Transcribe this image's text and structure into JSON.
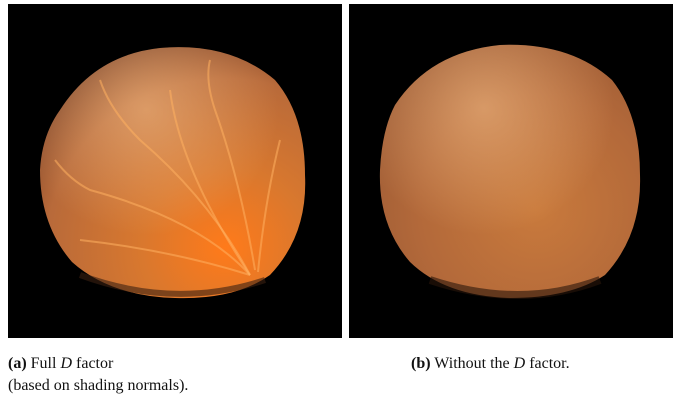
{
  "panels": [
    {
      "label": "(a)",
      "caption": {
        "before": "Full",
        "emphasis": "D",
        "after": "factor",
        "line2": "(based on shading normals)."
      }
    },
    {
      "label": "(b)",
      "caption": {
        "before": "Without the",
        "emphasis": "D",
        "after": "factor."
      }
    }
  ]
}
